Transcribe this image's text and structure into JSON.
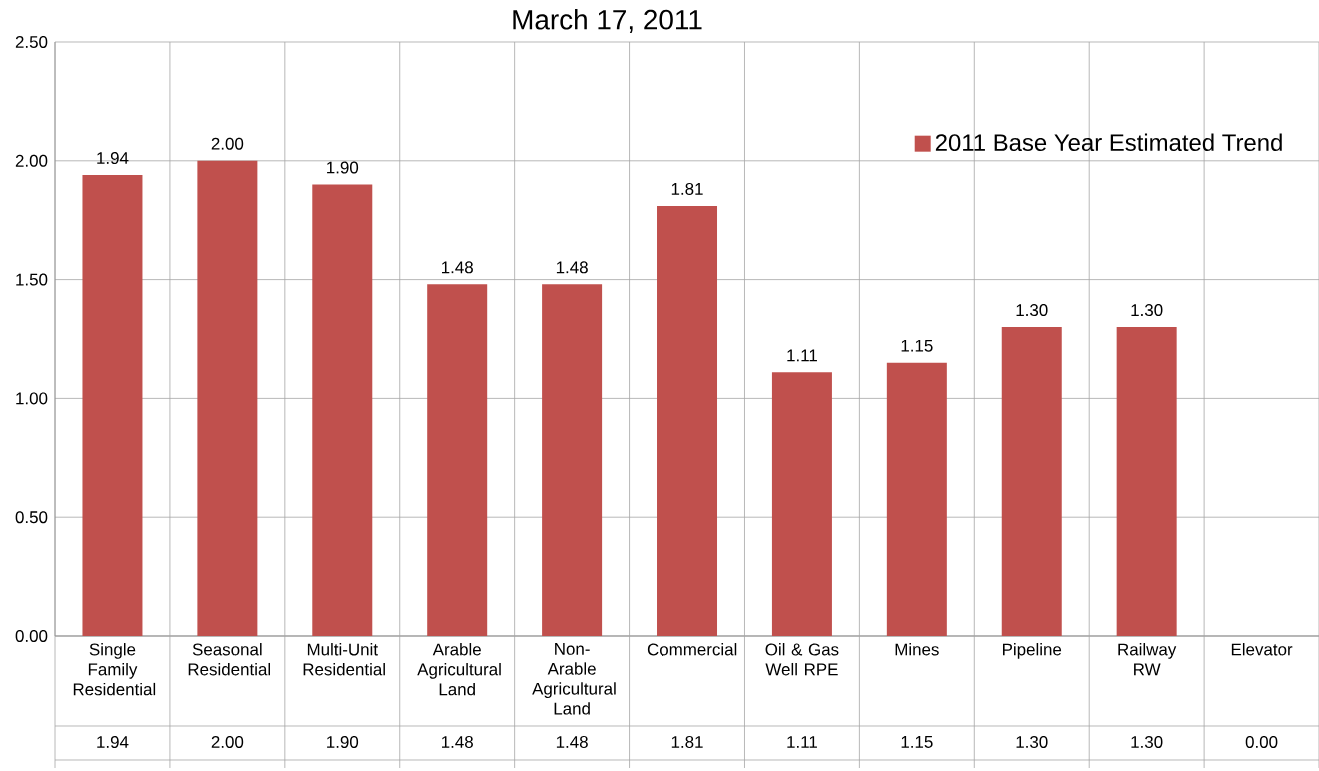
{
  "chart_data": {
    "type": "bar",
    "title": "March 17, 2011",
    "categories": [
      "Single Family Residential",
      "Seasonal Residential",
      "Multi-Unit Residential",
      "Arable Agricultural Land",
      "Non-Arable Agricultural Land",
      "Commercial",
      "Oil & Gas Well RPE",
      "Mines",
      "Pipeline",
      "Railway RW",
      "Elevator"
    ],
    "series": [
      {
        "name": "2011 Base Year Estimated Trend",
        "color": "#c0504d",
        "values": [
          1.94,
          2.0,
          1.9,
          1.48,
          1.48,
          1.81,
          1.11,
          1.15,
          1.3,
          1.3,
          0.0
        ],
        "value_labels": [
          "1.94",
          "2.00",
          "1.90",
          "1.48",
          "1.48",
          "1.81",
          "1.11",
          "1.15",
          "1.30",
          "1.30",
          "0.00"
        ]
      }
    ],
    "ylim": [
      0,
      2.5
    ],
    "yticks": [
      {
        "value": 0,
        "label": "0.00"
      },
      {
        "value": 0.5,
        "label": "0.50"
      },
      {
        "value": 1.0,
        "label": "1.00"
      },
      {
        "value": 1.5,
        "label": "1.50"
      },
      {
        "value": 2.0,
        "label": "2.00"
      },
      {
        "value": 2.5,
        "label": "2.50"
      }
    ],
    "grid": "y",
    "legend": "top right"
  }
}
